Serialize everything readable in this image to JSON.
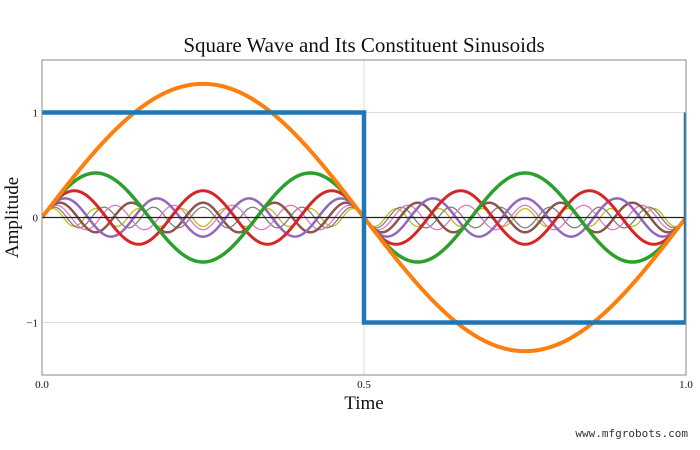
{
  "chart_data": {
    "type": "line",
    "title": "Square Wave and Its Constituent Sinusoids",
    "xlabel": "Time",
    "ylabel": "Amplitude",
    "xlim": [
      0,
      1
    ],
    "ylim": [
      -1.5,
      1.5
    ],
    "xticks": [
      "0.0",
      "0.5",
      "1.0"
    ],
    "yticks": [
      "−1",
      "0",
      "1"
    ],
    "grid": true,
    "square_wave": {
      "color": "#1f77b4",
      "x": [
        0,
        0.5,
        0.5,
        1,
        1
      ],
      "y": [
        1,
        1,
        -1,
        -1,
        1
      ]
    },
    "sinusoids": [
      {
        "harmonic": 1,
        "amplitude": 1.273,
        "color": "#ff7f0e"
      },
      {
        "harmonic": 3,
        "amplitude": 0.424,
        "color": "#2ca02c"
      },
      {
        "harmonic": 5,
        "amplitude": 0.255,
        "color": "#d62728"
      },
      {
        "harmonic": 7,
        "amplitude": 0.182,
        "color": "#9467bd"
      },
      {
        "harmonic": 9,
        "amplitude": 0.141,
        "color": "#8c564b"
      },
      {
        "harmonic": 11,
        "amplitude": 0.116,
        "color": "#e377c2"
      },
      {
        "harmonic": 13,
        "amplitude": 0.098,
        "color": "#7f7f7f"
      },
      {
        "harmonic": 15,
        "amplitude": 0.085,
        "color": "#bcbd22"
      }
    ]
  },
  "watermark": "www.mfgrobots.com"
}
